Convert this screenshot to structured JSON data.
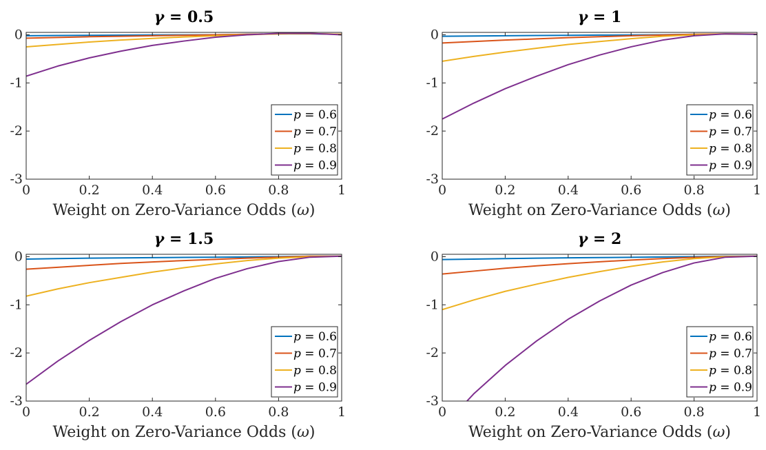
{
  "figure": {
    "xlabel_prefix": "Weight on Zero-Variance Odds (",
    "xlabel_symbol": "ω",
    "xlabel_suffix": ")"
  },
  "colors": {
    "p06": "#0072BD",
    "p07": "#D95319",
    "p08": "#EDB120",
    "p09": "#7E2F8E"
  },
  "chart_data": [
    {
      "type": "line",
      "title_symbol": "γ",
      "title_value": "= 0.5",
      "xlim": [
        0,
        1
      ],
      "ylim": [
        -3,
        0.05
      ],
      "xticks": [
        "0",
        "0.2",
        "0.4",
        "0.6",
        "0.8",
        "1"
      ],
      "yticks": [
        "0",
        "-1",
        "-2",
        "-3"
      ],
      "legend_position": "bottom-right",
      "x": [
        0,
        0.1,
        0.2,
        0.3,
        0.4,
        0.5,
        0.6,
        0.7,
        0.8,
        0.9,
        1.0
      ],
      "series": [
        {
          "name": "p = 0.6",
          "values": [
            -0.02,
            -0.015,
            -0.01,
            -0.007,
            -0.004,
            -0.002,
            0.0,
            0.01,
            0.02,
            0.02,
            0.01
          ]
        },
        {
          "name": "p = 0.7",
          "values": [
            -0.07,
            -0.055,
            -0.04,
            -0.03,
            -0.02,
            -0.01,
            0.0,
            0.01,
            0.02,
            0.025,
            0.01
          ]
        },
        {
          "name": "p = 0.8",
          "values": [
            -0.25,
            -0.2,
            -0.15,
            -0.11,
            -0.075,
            -0.045,
            -0.02,
            0.0,
            0.02,
            0.025,
            0.01
          ]
        },
        {
          "name": "p = 0.9",
          "values": [
            -0.86,
            -0.65,
            -0.48,
            -0.34,
            -0.22,
            -0.13,
            -0.05,
            0.0,
            0.03,
            0.03,
            0.0
          ]
        }
      ]
    },
    {
      "type": "line",
      "title_symbol": "γ",
      "title_value": "= 1",
      "xlim": [
        0,
        1
      ],
      "ylim": [
        -3,
        0.05
      ],
      "xticks": [
        "0",
        "0.2",
        "0.4",
        "0.6",
        "0.8",
        "1"
      ],
      "yticks": [
        "0",
        "-1",
        "-2",
        "-3"
      ],
      "legend_position": "bottom-right",
      "x": [
        0,
        0.1,
        0.2,
        0.3,
        0.4,
        0.5,
        0.6,
        0.7,
        0.8,
        0.9,
        1.0
      ],
      "series": [
        {
          "name": "p = 0.6",
          "values": [
            -0.03,
            -0.025,
            -0.02,
            -0.015,
            -0.01,
            -0.006,
            -0.003,
            0.0,
            0.01,
            0.015,
            0.01
          ]
        },
        {
          "name": "p = 0.7",
          "values": [
            -0.17,
            -0.14,
            -0.11,
            -0.085,
            -0.06,
            -0.04,
            -0.02,
            -0.005,
            0.01,
            0.02,
            0.015
          ]
        },
        {
          "name": "p = 0.8",
          "values": [
            -0.55,
            -0.45,
            -0.36,
            -0.28,
            -0.2,
            -0.14,
            -0.08,
            -0.03,
            0.0,
            0.02,
            0.015
          ]
        },
        {
          "name": "p = 0.9",
          "values": [
            -1.75,
            -1.42,
            -1.12,
            -0.86,
            -0.62,
            -0.42,
            -0.25,
            -0.11,
            -0.02,
            0.02,
            0.01
          ]
        }
      ]
    },
    {
      "type": "line",
      "title_symbol": "γ",
      "title_value": "= 1.5",
      "xlim": [
        0,
        1
      ],
      "ylim": [
        -3,
        0.05
      ],
      "xticks": [
        "0",
        "0.2",
        "0.4",
        "0.6",
        "0.8",
        "1"
      ],
      "yticks": [
        "0",
        "-1",
        "-2",
        "-3"
      ],
      "legend_position": "bottom-right",
      "x": [
        0,
        0.1,
        0.2,
        0.3,
        0.4,
        0.5,
        0.6,
        0.7,
        0.8,
        0.9,
        1.0
      ],
      "series": [
        {
          "name": "p = 0.6",
          "values": [
            -0.05,
            -0.04,
            -0.03,
            -0.025,
            -0.02,
            -0.015,
            -0.01,
            -0.005,
            0.0,
            0.01,
            0.01
          ]
        },
        {
          "name": "p = 0.7",
          "values": [
            -0.26,
            -0.22,
            -0.18,
            -0.14,
            -0.11,
            -0.08,
            -0.055,
            -0.03,
            -0.01,
            0.01,
            0.01
          ]
        },
        {
          "name": "p = 0.8",
          "values": [
            -0.82,
            -0.67,
            -0.54,
            -0.43,
            -0.32,
            -0.23,
            -0.15,
            -0.08,
            -0.03,
            0.0,
            0.01
          ]
        },
        {
          "name": "p = 0.9",
          "values": [
            -2.65,
            -2.17,
            -1.74,
            -1.35,
            -1.0,
            -0.71,
            -0.45,
            -0.25,
            -0.1,
            -0.01,
            0.01
          ]
        }
      ]
    },
    {
      "type": "line",
      "title_symbol": "γ",
      "title_value": "= 2",
      "xlim": [
        0,
        1
      ],
      "ylim": [
        -3,
        0.05
      ],
      "xticks": [
        "0",
        "0.2",
        "0.4",
        "0.6",
        "0.8",
        "1"
      ],
      "yticks": [
        "0",
        "-1",
        "-2",
        "-3"
      ],
      "legend_position": "bottom-right",
      "x": [
        0,
        0.1,
        0.2,
        0.3,
        0.4,
        0.5,
        0.6,
        0.7,
        0.8,
        0.9,
        1.0
      ],
      "series": [
        {
          "name": "p = 0.6",
          "values": [
            -0.06,
            -0.05,
            -0.04,
            -0.03,
            -0.024,
            -0.018,
            -0.012,
            -0.006,
            0.0,
            0.01,
            0.01
          ]
        },
        {
          "name": "p = 0.7",
          "values": [
            -0.36,
            -0.3,
            -0.24,
            -0.19,
            -0.145,
            -0.105,
            -0.07,
            -0.04,
            -0.015,
            0.005,
            0.01
          ]
        },
        {
          "name": "p = 0.8",
          "values": [
            -1.1,
            -0.9,
            -0.72,
            -0.57,
            -0.43,
            -0.31,
            -0.2,
            -0.11,
            -0.04,
            0.0,
            0.01
          ]
        },
        {
          "name": "p = 0.9",
          "values": [
            -3.55,
            -2.85,
            -2.26,
            -1.75,
            -1.3,
            -0.92,
            -0.59,
            -0.33,
            -0.13,
            -0.01,
            0.01
          ]
        }
      ]
    }
  ]
}
